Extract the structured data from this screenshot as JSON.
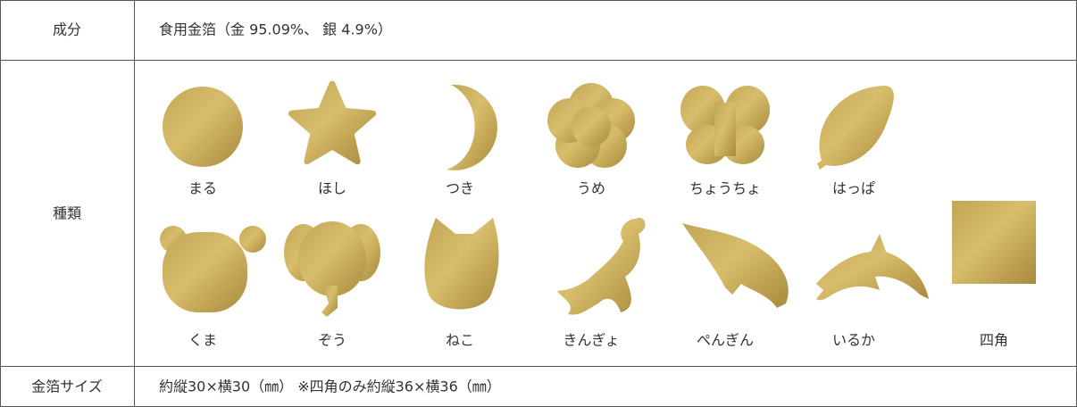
{
  "table": {
    "rows": [
      {
        "label": "成分",
        "content": "食用金箔（金 95.09%、 銀 4.9%）"
      },
      {
        "label": "種類",
        "shapes": [
          "まる",
          "ほし",
          "つき",
          "うめ",
          "ちょうちょ",
          "はっぱ",
          "くま",
          "ぞう",
          "ねこ",
          "きんぎょ",
          "ぺんぎん",
          "いるか",
          "四角"
        ]
      },
      {
        "label": "金箔サイズ",
        "content": "約縦30×横30（㎜） ※四角のみ約縦36×横36（㎜）"
      }
    ]
  }
}
